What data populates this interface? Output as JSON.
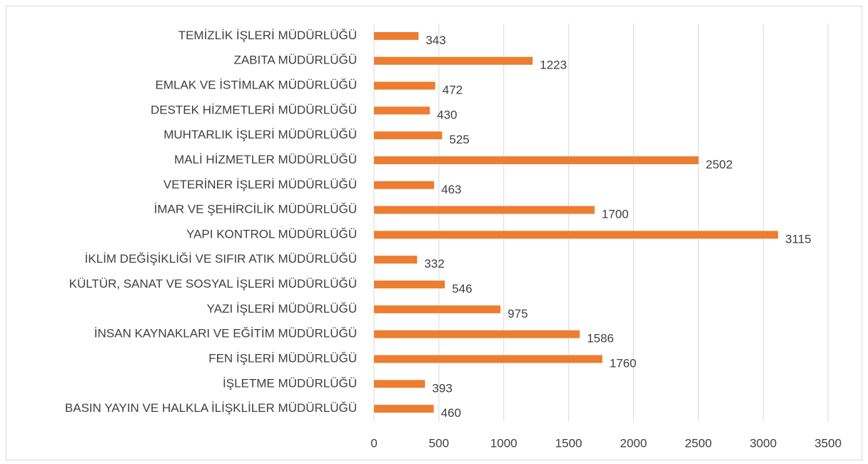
{
  "chart_data": {
    "type": "bar",
    "orientation": "horizontal",
    "categories": [
      "TEMİZLİK İŞLERİ MÜDÜRLÜĞÜ",
      "ZABITA MÜDÜRLÜĞÜ",
      "EMLAK VE İSTİMLAK MÜDÜRLÜĞÜ",
      "DESTEK HİZMETLERİ MÜDÜRLÜĞÜ",
      "MUHTARLIK İŞLERİ MÜDÜRLÜĞÜ",
      "MALİ HİZMETLER MÜDÜRLÜĞÜ",
      "VETERİNER İŞLERİ MÜDÜRLÜĞÜ",
      "İMAR VE ŞEHİRCİLİK MÜDÜRLÜĞÜ",
      "YAPI KONTROL MÜDÜRLÜĞÜ",
      "İKLİM DEĞİŞİKLİĞİ VE SIFIR  ATIK MÜDÜRLÜĞÜ",
      "KÜLTÜR, SANAT VE SOSYAL İŞLERİ MÜDÜRLÜĞÜ",
      "YAZI İŞLERİ  MÜDÜRLÜĞÜ",
      "İNSAN KAYNAKLARI VE EĞİTİM MÜDÜRLÜĞÜ",
      "FEN İŞLERİ MÜDÜRLÜĞÜ",
      "İŞLETME MÜDÜRLÜĞÜ",
      "BASIN YAYIN VE HALKLA İLİŞKLİLER MÜDÜRLÜĞÜ"
    ],
    "values": [
      343,
      1223,
      472,
      430,
      525,
      2502,
      463,
      1700,
      3115,
      332,
      546,
      975,
      1586,
      1760,
      393,
      460
    ],
    "color": "#ed7d31",
    "xlim": [
      0,
      3500
    ],
    "xticks": [
      0,
      500,
      1000,
      1500,
      2000,
      2500,
      3000,
      3500
    ],
    "grid": true
  }
}
